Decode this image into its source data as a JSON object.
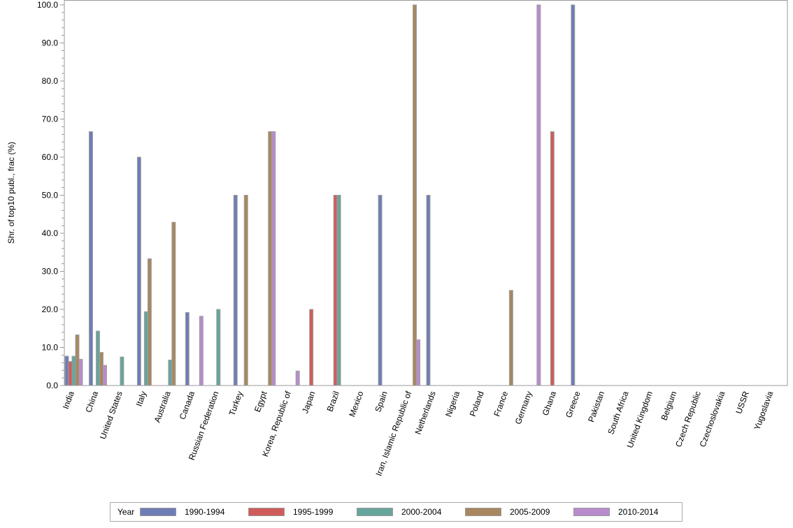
{
  "chart_data": {
    "type": "bar",
    "ylabel": "Shr. of top10 publ., frac (%)",
    "ylim": [
      0,
      100
    ],
    "yticks": [
      "0.0",
      "10.0",
      "20.0",
      "30.0",
      "40.0",
      "50.0",
      "60.0",
      "70.0",
      "80.0",
      "90.0",
      "100.0"
    ],
    "grid": false,
    "legend_position": "bottom",
    "legend_title": "Year",
    "categories": [
      "India",
      "China",
      "United States",
      "Italy",
      "Australia",
      "Canada",
      "Russian Federation",
      "Turkey",
      "Egypt",
      "Korea, Republic of",
      "Japan",
      "Brazil",
      "Mexico",
      "Spain",
      "Iran, Islamic Republic of",
      "Netherlands",
      "Nigeria",
      "Poland",
      "France",
      "Germany",
      "Ghana",
      "Greece",
      "Pakistan",
      "South Africa",
      "United Kingdom",
      "Belgium",
      "Czech Republic",
      "Czechoslovakia",
      "USSR",
      "Yugoslavia"
    ],
    "series": [
      {
        "name": "1990-1994",
        "color": "#6f7db5",
        "values": [
          7.7,
          66.7,
          0,
          60,
          0,
          19.2,
          0,
          50,
          0,
          0,
          0,
          0,
          0,
          50,
          0,
          50,
          0,
          0,
          0,
          0,
          0,
          100,
          0,
          0,
          0,
          0,
          0,
          0,
          0,
          0
        ]
      },
      {
        "name": "1995-1999",
        "color": "#d05b5b",
        "values": [
          6.3,
          0,
          0,
          0,
          0,
          0,
          0,
          0,
          0,
          0,
          20,
          50,
          0,
          0,
          0,
          0,
          0,
          0,
          0,
          0,
          66.7,
          0,
          0,
          0,
          0,
          0,
          0,
          0,
          0,
          0
        ]
      },
      {
        "name": "2000-2004",
        "color": "#66a59c",
        "values": [
          7.7,
          14.3,
          7.5,
          19.4,
          6.7,
          0,
          20,
          0,
          0,
          0,
          0,
          50,
          0,
          0,
          0,
          0,
          0,
          0,
          0,
          0,
          0,
          0,
          0,
          0,
          0,
          0,
          0,
          0,
          0,
          0
        ]
      },
      {
        "name": "2005-2009",
        "color": "#a88760",
        "values": [
          13.3,
          8.7,
          0,
          33.3,
          42.9,
          0,
          0,
          50,
          66.7,
          0,
          0,
          0,
          0,
          0,
          100,
          0,
          0,
          0,
          25,
          0,
          0,
          0,
          0,
          0,
          0,
          0,
          0,
          0,
          0,
          0
        ]
      },
      {
        "name": "2010-2014",
        "color": "#b88ccc",
        "values": [
          6.9,
          5.3,
          0,
          0,
          0,
          18.2,
          0,
          0,
          66.7,
          3.8,
          0,
          0,
          0,
          0,
          12,
          0,
          0,
          0,
          0,
          100,
          0,
          0,
          0,
          0,
          0,
          0,
          0,
          0,
          0,
          0
        ]
      }
    ]
  }
}
